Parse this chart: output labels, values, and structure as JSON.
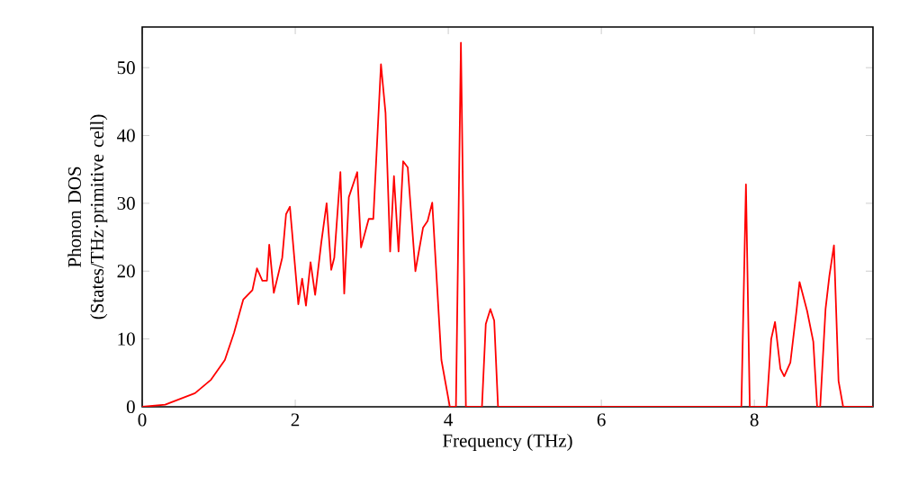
{
  "chart_data": {
    "type": "line",
    "xlabel": "Frequency (THz)",
    "ylabel": "Phonon DOS (States/THz·primitive cell)",
    "xlim": [
      0,
      9.55
    ],
    "ylim": [
      0,
      56
    ],
    "xticks": [
      0,
      2,
      4,
      6,
      8
    ],
    "yticks": [
      0,
      10,
      20,
      30,
      40,
      50
    ],
    "grid": false,
    "marker": "none",
    "line_style": "solid",
    "series": [
      {
        "color": "#ff0000",
        "x": [
          0,
          0.3,
          0.69,
          0.9,
          1.08,
          1.2,
          1.32,
          1.44,
          1.5,
          1.57,
          1.63,
          1.66,
          1.72,
          1.83,
          1.88,
          1.93,
          2.04,
          2.09,
          2.14,
          2.2,
          2.26,
          2.34,
          2.41,
          2.47,
          2.51,
          2.59,
          2.64,
          2.7,
          2.81,
          2.86,
          2.96,
          3.02,
          3.12,
          3.18,
          3.24,
          3.29,
          3.35,
          3.41,
          3.47,
          3.57,
          3.67,
          3.73,
          3.79,
          3.91,
          4.02,
          4.1,
          4.165,
          4.23,
          4.44,
          4.49,
          4.55,
          4.6,
          4.65,
          7.83,
          7.89,
          7.94,
          8.16,
          8.22,
          8.27,
          8.34,
          8.39,
          8.47,
          8.55,
          8.59,
          8.69,
          8.77,
          8.82,
          8.86,
          8.93,
          8.98,
          9.04,
          9.1,
          9.16,
          9.55
        ],
        "values": [
          0,
          0.3,
          2.0,
          4.0,
          6.9,
          10.9,
          15.8,
          17.2,
          20.4,
          18.6,
          18.6,
          23.9,
          16.8,
          22,
          28.4,
          29.5,
          15.1,
          18.9,
          14.9,
          21.3,
          16.5,
          24.2,
          30,
          20.2,
          22,
          34.6,
          16.7,
          30.9,
          34.6,
          23.5,
          27.7,
          27.7,
          50.5,
          43.3,
          22.9,
          34,
          22.9,
          36.2,
          35.3,
          20,
          26.4,
          27.4,
          30.1,
          6.9,
          0,
          0,
          53.7,
          0,
          0,
          12.2,
          14.4,
          12.7,
          0,
          0,
          32.8,
          0,
          0,
          10,
          12.5,
          5.6,
          4.5,
          6.5,
          14.1,
          18.4,
          14.1,
          9.6,
          0,
          0,
          14.4,
          19.3,
          23.8,
          3.8,
          0,
          0
        ]
      }
    ]
  }
}
